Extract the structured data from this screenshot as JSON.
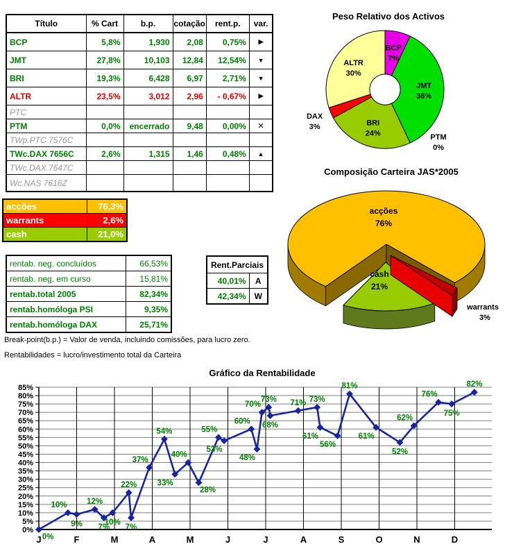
{
  "table": {
    "headers": [
      "Título",
      "% Cart",
      "b.p.",
      "cotação",
      "rent.p.",
      "var."
    ],
    "rows": [
      {
        "name": "BCP",
        "cart": "5,8%",
        "bp": "1,930",
        "cot": "2,08",
        "rent": "0,75%",
        "varsym": "▶",
        "color": "green"
      },
      {
        "name": "JMT",
        "cart": "27,8%",
        "bp": "10,103",
        "cot": "12,84",
        "rent": "12,54%",
        "varsym": "▼",
        "color": "green"
      },
      {
        "name": "BRI",
        "cart": "19,3%",
        "bp": "6,428",
        "cot": "6,97",
        "rent": "2,71%",
        "varsym": "▼",
        "color": "green"
      },
      {
        "name": "ALTR",
        "cart": "23,5%",
        "bp": "3,012",
        "cot": "2,96",
        "rent": "- 0,67%",
        "varsym": "▶",
        "color": "red"
      },
      {
        "name": "PTC",
        "cart": "",
        "bp": "",
        "cot": "",
        "rent": "",
        "varsym": "",
        "color": "dim"
      },
      {
        "name": "PTM",
        "cart": "0,0%",
        "bp": "encerrado",
        "cot": "9,48",
        "rent": "0,00%",
        "varsym": "×",
        "color": "green"
      },
      {
        "name": "TWp.PTC 7576C",
        "cart": "",
        "bp": "",
        "cot": "",
        "rent": "",
        "varsym": "",
        "color": "dim"
      },
      {
        "name": "TWc.DAX 7656C",
        "cart": "2,6%",
        "bp": "1,315",
        "cot": "1,46",
        "rent": "0,48%",
        "varsym": "▲",
        "color": "green"
      },
      {
        "name": "TWc.DAX 7647C",
        "cart": "",
        "bp": "",
        "cot": "",
        "rent": "",
        "varsym": "",
        "color": "dim"
      },
      {
        "name": "Wc.NAS 7616Z",
        "cart": "",
        "bp": "",
        "cot": "",
        "rent": "",
        "varsym": "",
        "color": "dim"
      }
    ]
  },
  "allocation": {
    "rows": [
      {
        "label": "acções",
        "value": "76,3%",
        "bg": "#FFC000"
      },
      {
        "label": "warrants",
        "value": "2,6%",
        "bg": "#FF0000"
      },
      {
        "label": "cash",
        "value": "21,0%",
        "bg": "#99CC00"
      }
    ]
  },
  "rentab": {
    "rows": [
      {
        "label": "rentab. neg. concluídos",
        "value": "66,53%",
        "bold": false
      },
      {
        "label": "rentab. neg. em curso",
        "value": "15,81%",
        "bold": false
      },
      {
        "label": "rentab.total 2005",
        "value": "82,34%",
        "bold": true
      },
      {
        "label": "rentab.homóloga PSI",
        "value": "9,35%",
        "bold": true
      },
      {
        "label": "rentab.homóloga DAX",
        "value": "25,71%",
        "bold": true
      }
    ]
  },
  "rent_parciais": {
    "title": "Rent.Parciais",
    "rows": [
      {
        "value": "40,01%",
        "letter": "A"
      },
      {
        "value": "42,34%",
        "letter": "W"
      }
    ]
  },
  "notes": {
    "line1": "Break-point(b.p.) = Valor de venda, incluindo comissões, para lucro zero.",
    "line2": "Rentabilidades = lucro/investimento total da Carteira"
  },
  "colors": {
    "green_text": "#008000",
    "red_text": "#e60000",
    "line_navy": "#17259E",
    "grid_gray": "#7f7f7f"
  },
  "chart_data": [
    {
      "type": "pie",
      "title": "Peso Relativo dos Activos",
      "hole_ratio": 0.26,
      "legend_position": "none",
      "slices": [
        {
          "name": "BCP",
          "value": 7,
          "label": "7%",
          "color": "#E800E8",
          "placement": "inside"
        },
        {
          "name": "JMT",
          "value": 36,
          "label": "36%",
          "color": "#00DF00",
          "placement": "inside"
        },
        {
          "name": "PTM",
          "value": 0,
          "label": "0%",
          "color": "#00DF00",
          "placement": "outside",
          "ldx": 30,
          "ldy": -26
        },
        {
          "name": "BRI",
          "value": 24,
          "label": "24%",
          "color": "#99CC00",
          "placement": "inside"
        },
        {
          "name": "DAX",
          "value": 3,
          "label": "3%",
          "color": "#FF0000",
          "placement": "outside"
        },
        {
          "name": "ALTR",
          "value": 30,
          "label": "30%",
          "color": "#FFFF99",
          "placement": "inside"
        }
      ]
    },
    {
      "type": "pie",
      "title": "Composição Carteira JAS*2005",
      "style": "3d-exploded",
      "slices": [
        {
          "name": "acções",
          "value": 76,
          "label": "76%",
          "color": "#FFC000"
        },
        {
          "name": "cash",
          "value": 21,
          "label": "21%",
          "color": "#99CC00"
        },
        {
          "name": "warrants",
          "value": 3,
          "label": "3%",
          "color": "#FF0000"
        }
      ]
    },
    {
      "type": "line",
      "title": "Gráfico da Rentabilidade",
      "ylim": [
        0,
        85
      ],
      "y_step": 5,
      "grid": true,
      "months": [
        "J",
        "F",
        "M",
        "A",
        "M",
        "J",
        "J",
        "A",
        "S",
        "O",
        "N",
        "D"
      ],
      "points": [
        {
          "x": 0.0,
          "v": 0,
          "lp": "br"
        },
        {
          "x": 0.77,
          "v": 10,
          "lp": "al"
        },
        {
          "x": 1.0,
          "v": 9,
          "lp": "b"
        },
        {
          "x": 1.48,
          "v": 12,
          "lp": "a"
        },
        {
          "x": 1.72,
          "v": 7,
          "lp": "b"
        },
        {
          "x": 1.95,
          "v": 10,
          "lp": "b"
        },
        {
          "x": 2.38,
          "v": 22,
          "lp": "a"
        },
        {
          "x": 2.44,
          "v": 7,
          "lp": "b"
        },
        {
          "x": 2.92,
          "v": 37,
          "lp": "al"
        },
        {
          "x": 3.32,
          "v": 54,
          "lp": "a"
        },
        {
          "x": 3.6,
          "v": 33,
          "lp": "bl"
        },
        {
          "x": 3.95,
          "v": 40,
          "lp": "al"
        },
        {
          "x": 4.23,
          "v": 28,
          "lp": "br"
        },
        {
          "x": 4.75,
          "v": 55,
          "lp": "al"
        },
        {
          "x": 4.9,
          "v": 53,
          "lp": "bl"
        },
        {
          "x": 5.62,
          "v": 60,
          "lp": "al"
        },
        {
          "x": 5.77,
          "v": 48,
          "lp": "bl"
        },
        {
          "x": 5.9,
          "v": 70,
          "lp": "al"
        },
        {
          "x": 6.08,
          "v": 73,
          "lp": "a"
        },
        {
          "x": 6.12,
          "v": 68,
          "lp": "b"
        },
        {
          "x": 6.86,
          "v": 71,
          "lp": "a"
        },
        {
          "x": 7.36,
          "v": 73,
          "lp": "a"
        },
        {
          "x": 7.44,
          "v": 61,
          "lp": "bl"
        },
        {
          "x": 7.9,
          "v": 56,
          "lp": "bl"
        },
        {
          "x": 8.22,
          "v": 81,
          "lp": "a"
        },
        {
          "x": 8.92,
          "v": 61,
          "lp": "bl"
        },
        {
          "x": 9.55,
          "v": 52,
          "lp": "b"
        },
        {
          "x": 9.92,
          "v": 62,
          "lp": "al"
        },
        {
          "x": 10.57,
          "v": 76,
          "lp": "al"
        },
        {
          "x": 10.92,
          "v": 75,
          "lp": "b"
        },
        {
          "x": 11.52,
          "v": 82,
          "lp": "a"
        }
      ]
    }
  ]
}
